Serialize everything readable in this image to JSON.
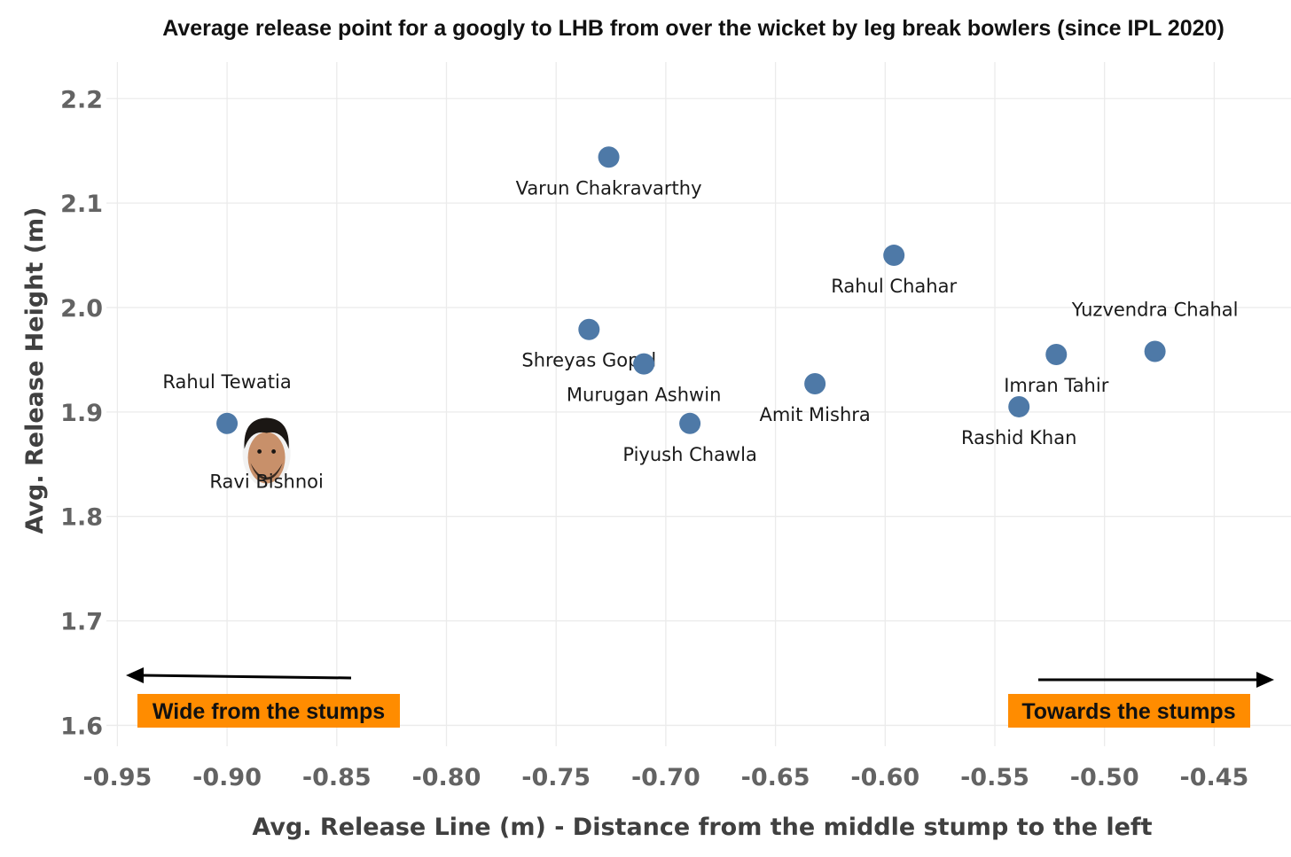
{
  "chart_data": {
    "type": "scatter",
    "title": "Average release point for a googly to LHB from over the wicket by leg break bowlers (since IPL 2020)",
    "xlabel": "Avg. Release Line (m) - Distance from the middle stump to the left",
    "ylabel": "Avg. Release Height (m)",
    "xlim": [
      -0.955,
      -0.415
    ],
    "ylim": [
      1.58,
      2.235
    ],
    "x_ticks": [
      -0.95,
      -0.9,
      -0.85,
      -0.8,
      -0.75,
      -0.7,
      -0.65,
      -0.6,
      -0.55,
      -0.5,
      -0.45
    ],
    "y_ticks": [
      1.6,
      1.7,
      1.8,
      1.9,
      2.0,
      2.1,
      2.2
    ],
    "x_tick_labels": [
      "-0.95",
      "-0.90",
      "-0.85",
      "-0.80",
      "-0.75",
      "-0.70",
      "-0.65",
      "-0.60",
      "-0.55",
      "-0.50",
      "-0.45"
    ],
    "y_tick_labels": [
      "1.6",
      "1.7",
      "1.8",
      "1.9",
      "2.0",
      "2.1",
      "2.2"
    ],
    "grid": true,
    "marker_color": "#4e79a7",
    "points": [
      {
        "label": "Varun Chakravarthy",
        "x": -0.726,
        "y": 2.144,
        "label_pos": "below"
      },
      {
        "label": "Rahul Chahar",
        "x": -0.596,
        "y": 2.05,
        "label_pos": "below"
      },
      {
        "label": "Shreyas Gopal",
        "x": -0.735,
        "y": 1.979,
        "label_pos": "below"
      },
      {
        "label": "Murugan Ashwin",
        "x": -0.71,
        "y": 1.946,
        "label_pos": "below"
      },
      {
        "label": "Amit Mishra",
        "x": -0.632,
        "y": 1.927,
        "label_pos": "below"
      },
      {
        "label": "Piyush Chawla",
        "x": -0.689,
        "y": 1.889,
        "label_pos": "below"
      },
      {
        "label": "Imran Tahir",
        "x": -0.522,
        "y": 1.955,
        "label_pos": "below"
      },
      {
        "label": "Yuzvendra Chahal",
        "x": -0.477,
        "y": 1.958,
        "label_pos": "above"
      },
      {
        "label": "Rashid Khan",
        "x": -0.539,
        "y": 1.905,
        "label_pos": "below"
      },
      {
        "label": "Rahul Tewatia",
        "x": -0.9,
        "y": 1.889,
        "label_pos": "above"
      },
      {
        "label": "Ravi Bishnoi",
        "x": -0.882,
        "y": 1.863,
        "label_pos": "below",
        "marker": "photo"
      }
    ],
    "annotations": [
      {
        "text": "Wide from the stumps",
        "arrow": "left",
        "position": "bottom-left",
        "background": "#ff8c00"
      },
      {
        "text": "Towards the stumps",
        "arrow": "right",
        "position": "bottom-right",
        "background": "#ff8c00"
      }
    ]
  }
}
